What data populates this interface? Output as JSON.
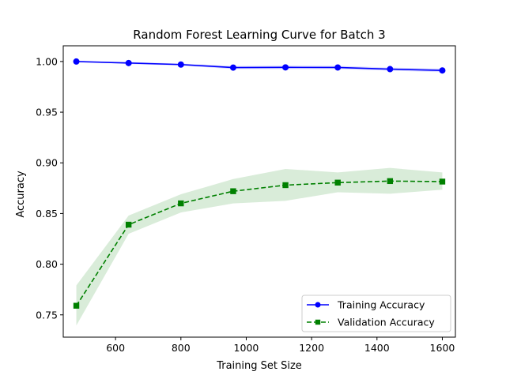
{
  "chart_data": {
    "type": "line",
    "title": "Random Forest Learning Curve for Batch 3",
    "xlabel": "Training Set Size",
    "ylabel": "Accuracy",
    "xlim": [
      440,
      1640
    ],
    "ylim": [
      0.728,
      1.0155
    ],
    "xticks": [
      600,
      800,
      1000,
      1200,
      1400,
      1600
    ],
    "yticks": [
      0.75,
      0.8,
      0.85,
      0.9,
      0.95,
      1.0
    ],
    "xtick_labels": [
      "600",
      "800",
      "1000",
      "1200",
      "1400",
      "1600"
    ],
    "ytick_labels": [
      "0.75",
      "0.80",
      "0.85",
      "0.90",
      "0.95",
      "1.00"
    ],
    "grid": false,
    "legend_position": "lower right",
    "x": [
      480,
      640,
      800,
      960,
      1120,
      1280,
      1440,
      1600
    ],
    "series": [
      {
        "name": "Training Accuracy",
        "values": [
          1.0,
          0.9985,
          0.997,
          0.994,
          0.9942,
          0.9941,
          0.9925,
          0.9912
        ],
        "lower": [
          1.0,
          0.9975,
          0.996,
          0.9925,
          0.9925,
          0.9925,
          0.991,
          0.9895
        ],
        "upper": [
          1.0,
          0.9995,
          0.998,
          0.9955,
          0.996,
          0.9957,
          0.994,
          0.993
        ],
        "color": "#0000ff",
        "linestyle": "solid",
        "marker": "circle"
      },
      {
        "name": "Validation Accuracy",
        "values": [
          0.759,
          0.839,
          0.86,
          0.872,
          0.878,
          0.8805,
          0.882,
          0.8815
        ],
        "lower": [
          0.7395,
          0.83,
          0.851,
          0.86,
          0.8625,
          0.871,
          0.8695,
          0.8735
        ],
        "upper": [
          0.779,
          0.848,
          0.869,
          0.884,
          0.894,
          0.8905,
          0.895,
          0.8905
        ],
        "color": "#008000",
        "linestyle": "dashed",
        "marker": "square"
      }
    ]
  }
}
